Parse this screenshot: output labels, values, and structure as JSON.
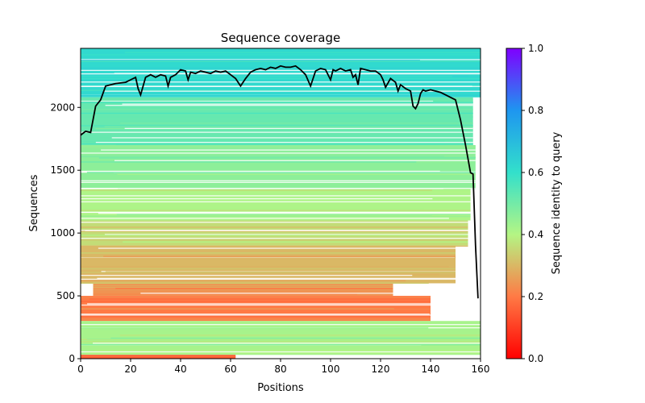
{
  "chart_data": {
    "type": "heatmap",
    "title": "Sequence coverage",
    "xlabel": "Positions",
    "ylabel": "Sequences",
    "xlim": [
      0,
      160
    ],
    "ylim": [
      0,
      2470
    ],
    "xticks": [
      0,
      20,
      40,
      60,
      80,
      100,
      120,
      140,
      160
    ],
    "yticks": [
      0,
      500,
      1000,
      1500,
      2000
    ],
    "colorbar": {
      "label": "Sequence identity to query",
      "ticks": [
        "0.0",
        "0.2",
        "0.4",
        "0.6",
        "0.8",
        "1.0"
      ],
      "range": [
        0,
        1
      ],
      "colormap": "rainbow_r"
    },
    "grid": false,
    "coverage_bands": [
      {
        "y0": 2080,
        "y1": 2470,
        "x0": 0,
        "x1": 160,
        "identity": 0.62
      },
      {
        "y0": 1700,
        "y1": 2080,
        "x0": 0,
        "x1": 157,
        "identity": 0.52
      },
      {
        "y0": 1350,
        "y1": 1700,
        "x0": 0,
        "x1": 158,
        "identity": 0.46
      },
      {
        "y0": 1100,
        "y1": 1350,
        "x0": 0,
        "x1": 156,
        "identity": 0.41
      },
      {
        "y0": 900,
        "y1": 1100,
        "x0": 0,
        "x1": 155,
        "identity": 0.36
      },
      {
        "y0": 600,
        "y1": 900,
        "x0": 0,
        "x1": 150,
        "identity": 0.3
      },
      {
        "y0": 500,
        "y1": 600,
        "x0": 5,
        "x1": 125,
        "identity": 0.24
      },
      {
        "y0": 300,
        "y1": 500,
        "x0": 0,
        "x1": 140,
        "identity": 0.2
      },
      {
        "y0": 30,
        "y1": 300,
        "x0": 0,
        "x1": 160,
        "identity": 0.42
      },
      {
        "y0": 0,
        "y1": 30,
        "x0": 0,
        "x1": 62,
        "identity": 0.14
      }
    ],
    "series": [
      {
        "type": "line",
        "color": "#000000",
        "x": [
          0,
          2,
          4,
          6,
          8,
          10,
          14,
          18,
          20,
          22,
          23,
          24,
          26,
          28,
          30,
          32,
          34,
          35,
          36,
          38,
          40,
          42,
          43,
          44,
          46,
          48,
          50,
          52,
          54,
          56,
          58,
          60,
          62,
          64,
          66,
          68,
          70,
          72,
          74,
          76,
          78,
          80,
          82,
          84,
          86,
          88,
          90,
          92,
          94,
          95,
          96,
          98,
          100,
          101,
          102,
          104,
          106,
          108,
          109,
          110,
          111,
          112,
          114,
          116,
          118,
          120,
          121,
          122,
          124,
          126,
          127,
          128,
          130,
          132,
          133,
          134,
          135,
          136,
          137,
          138,
          140,
          142,
          144,
          146,
          148,
          150,
          152,
          154,
          156,
          157,
          158,
          159
        ],
        "y": [
          1780,
          1810,
          1800,
          2010,
          2060,
          2170,
          2190,
          2200,
          2220,
          2240,
          2150,
          2100,
          2240,
          2260,
          2240,
          2260,
          2250,
          2170,
          2240,
          2260,
          2300,
          2290,
          2220,
          2280,
          2270,
          2290,
          2280,
          2270,
          2290,
          2280,
          2290,
          2260,
          2230,
          2170,
          2230,
          2280,
          2300,
          2310,
          2300,
          2320,
          2310,
          2330,
          2320,
          2320,
          2330,
          2300,
          2260,
          2170,
          2290,
          2300,
          2310,
          2300,
          2220,
          2300,
          2290,
          2310,
          2290,
          2300,
          2240,
          2260,
          2180,
          2310,
          2300,
          2290,
          2290,
          2260,
          2220,
          2160,
          2230,
          2200,
          2130,
          2180,
          2150,
          2130,
          2010,
          1990,
          2030,
          2110,
          2140,
          2130,
          2140,
          2130,
          2120,
          2100,
          2080,
          2060,
          1900,
          1700,
          1480,
          1470,
          900,
          480
        ]
      }
    ]
  }
}
